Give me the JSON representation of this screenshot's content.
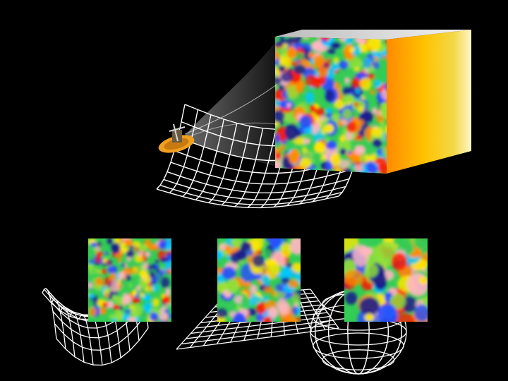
{
  "scene": {
    "background": "#000000",
    "grid_color": "#ffffff",
    "cube_side_colors": [
      "#ff8a00",
      "#ffc200",
      "#f2d94a",
      "#fff6c8"
    ],
    "cube_top_color": "#dddddd",
    "beam_color": "#ffffff",
    "probe_dish_color": "#f0a020",
    "cmb_palette": [
      "#1a1a8c",
      "#2a4cff",
      "#00c8ff",
      "#33cc55",
      "#8fe03a",
      "#ffe600",
      "#ff8c00",
      "#ff1a00",
      "#ffb6c1"
    ],
    "geometries": [
      "closed-sphere",
      "flat-plane",
      "open-saddle"
    ],
    "panels": [
      {
        "name": "open-saddle-panel",
        "geometry": "saddle",
        "spot_size": "small"
      },
      {
        "name": "flat-plane-panel",
        "geometry": "flat",
        "spot_size": "medium"
      },
      {
        "name": "closed-sphere-panel",
        "geometry": "sphere",
        "spot_size": "large"
      }
    ],
    "icons": [
      "space-probe-icon",
      "cmb-cube",
      "saddle-grid",
      "flat-grid",
      "sphere-grid"
    ]
  }
}
